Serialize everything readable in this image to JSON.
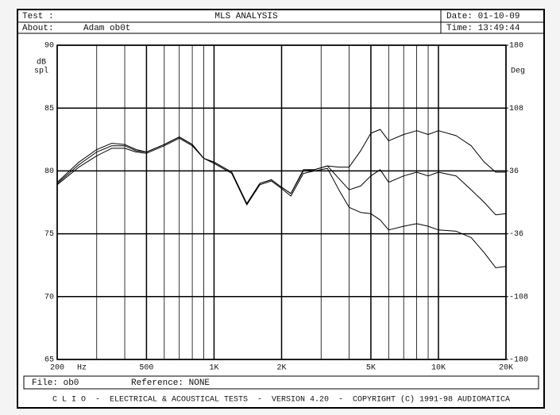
{
  "header": {
    "test_label": "Test :",
    "title": "MLS ANALYSIS",
    "date": "Date: 01-10-09",
    "about_label": "About:",
    "about": "Adam ob0t",
    "time": "Time: 13:49:44"
  },
  "chart_data": {
    "type": "line",
    "xscale": "log",
    "x_label": "Hz",
    "y_label": [
      "dB",
      "spl"
    ],
    "y2_label": "Deg",
    "x": [
      200,
      250,
      300,
      350,
      400,
      450,
      500,
      600,
      700,
      800,
      900,
      1000,
      1200,
      1400,
      1600,
      1800,
      2000,
      2200,
      2500,
      2800,
      3200,
      3600,
      4000,
      4500,
      5000,
      5500,
      6000,
      7000,
      8000,
      9000,
      10000,
      12000,
      14000,
      16000,
      18000,
      20000
    ],
    "series": [
      {
        "color": "#000000",
        "values": [
          79.0,
          80.5,
          81.5,
          82.0,
          82.0,
          81.6,
          81.5,
          82.1,
          82.7,
          82.1,
          81.0,
          80.7,
          79.9,
          77.4,
          79.0,
          79.3,
          78.7,
          78.2,
          80.1,
          80.1,
          80.4,
          80.3,
          80.3,
          81.6,
          83.0,
          83.3,
          82.4,
          82.9,
          83.2,
          82.9,
          83.2,
          82.8,
          82.0,
          80.7,
          79.9,
          79.9
        ]
      },
      {
        "color": "#000000",
        "values": [
          79.1,
          80.7,
          81.7,
          82.2,
          82.1,
          81.7,
          81.5,
          82.1,
          82.7,
          82.1,
          81.0,
          80.7,
          79.9,
          77.4,
          79.0,
          79.3,
          78.7,
          78.2,
          80.0,
          80.1,
          80.4,
          79.4,
          78.5,
          78.8,
          79.6,
          80.1,
          79.1,
          79.6,
          79.9,
          79.6,
          79.9,
          79.6,
          78.5,
          77.5,
          76.5,
          76.6
        ]
      },
      {
        "color": "#000000",
        "values": [
          78.9,
          80.3,
          81.2,
          81.8,
          81.8,
          81.5,
          81.4,
          82.0,
          82.6,
          82.0,
          81.0,
          80.6,
          79.8,
          77.3,
          78.9,
          79.2,
          78.6,
          78.0,
          79.8,
          80.0,
          80.2,
          78.5,
          77.1,
          76.7,
          76.6,
          76.1,
          75.3,
          75.6,
          75.8,
          75.6,
          75.3,
          75.2,
          74.7,
          73.5,
          72.3,
          72.4
        ]
      }
    ],
    "xlim": [
      200,
      20000
    ],
    "xticks": [
      200,
      500,
      {
        "value": 1000,
        "label": "1K"
      },
      {
        "value": 2000,
        "label": "2K"
      },
      {
        "value": 5000,
        "label": "5K"
      },
      {
        "value": 10000,
        "label": "10K"
      },
      {
        "value": 20000,
        "label": "20K"
      }
    ],
    "xgrid": [
      300,
      400,
      600,
      700,
      800,
      900,
      3000,
      4000,
      6000,
      7000,
      8000,
      9000
    ],
    "ylim": [
      65,
      90
    ],
    "yticks": [
      65,
      70,
      75,
      80,
      85,
      90
    ],
    "y2lim": [
      -180,
      180
    ],
    "y2ticks": [
      -180,
      -108,
      -36,
      36,
      108,
      180
    ],
    "grid": true
  },
  "footer": {
    "file": "File: ob0",
    "reference": "Reference: NONE",
    "banner": "C L I O  -  ELECTRICAL & ACOUSTICAL TESTS  -  VERSION 4.20  -  COPYRIGHT (C) 1991-98 AUDIOMATICA"
  }
}
